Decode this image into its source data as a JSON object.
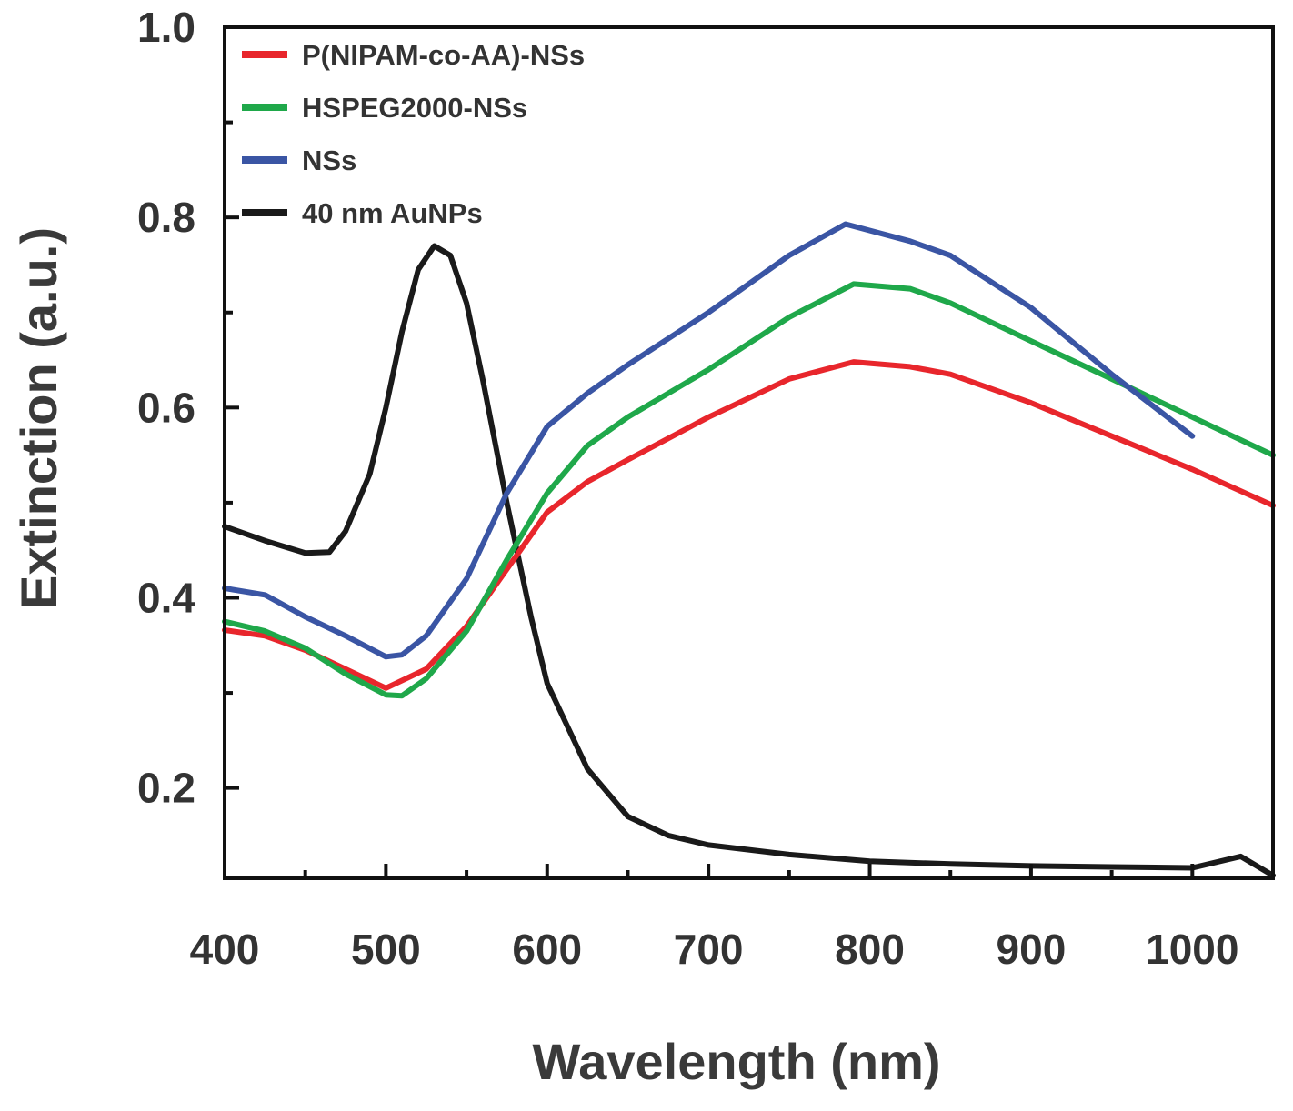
{
  "chart_data": {
    "type": "line",
    "xlabel": "Wavelength (nm)",
    "ylabel": "Extinction (a.u.)",
    "xlim": [
      400,
      1050
    ],
    "ylim": [
      0.105,
      1.0
    ],
    "xticks": [
      400,
      500,
      600,
      700,
      800,
      900,
      1000
    ],
    "yticks": [
      0.2,
      0.4,
      0.6,
      0.8,
      1.0
    ],
    "ytick_labels": [
      "0.2",
      "0.4",
      "0.6",
      "0.8",
      "1.0"
    ],
    "grid": false,
    "legend": "top-left",
    "series": [
      {
        "name": "P(NIPAM-co-AA)-NSs",
        "color": "#e8262c",
        "x": [
          400,
          425,
          450,
          475,
          500,
          525,
          550,
          575,
          600,
          625,
          650,
          700,
          750,
          790,
          825,
          850,
          900,
          950,
          1000,
          1050
        ],
        "y": [
          0.366,
          0.36,
          0.345,
          0.325,
          0.305,
          0.325,
          0.37,
          0.43,
          0.49,
          0.522,
          0.545,
          0.59,
          0.63,
          0.648,
          0.643,
          0.635,
          0.605,
          0.57,
          0.535,
          0.497
        ]
      },
      {
        "name": "HSPEG2000-NSs",
        "color": "#1fa84a",
        "x": [
          400,
          425,
          450,
          475,
          500,
          510,
          525,
          550,
          575,
          600,
          625,
          650,
          700,
          750,
          790,
          825,
          850,
          900,
          950,
          1000,
          1050
        ],
        "y": [
          0.375,
          0.365,
          0.347,
          0.32,
          0.298,
          0.297,
          0.315,
          0.365,
          0.44,
          0.51,
          0.56,
          0.59,
          0.64,
          0.695,
          0.73,
          0.725,
          0.71,
          0.67,
          0.63,
          0.59,
          0.55
        ]
      },
      {
        "name": "NSs",
        "color": "#3a55a4",
        "x": [
          400,
          425,
          450,
          475,
          500,
          510,
          525,
          550,
          575,
          600,
          625,
          650,
          700,
          750,
          785,
          825,
          850,
          900,
          950,
          1000
        ],
        "y": [
          0.41,
          0.403,
          0.38,
          0.36,
          0.338,
          0.34,
          0.36,
          0.42,
          0.51,
          0.58,
          0.615,
          0.645,
          0.7,
          0.76,
          0.793,
          0.775,
          0.76,
          0.705,
          0.635,
          0.57
        ]
      },
      {
        "name": "40 nm AuNPs",
        "color": "#1a1a1a",
        "x": [
          400,
          425,
          450,
          465,
          475,
          490,
          500,
          510,
          520,
          530,
          540,
          550,
          560,
          575,
          590,
          600,
          625,
          650,
          675,
          700,
          750,
          800,
          850,
          900,
          950,
          1000,
          1030,
          1050
        ],
        "y": [
          0.475,
          0.46,
          0.447,
          0.448,
          0.47,
          0.53,
          0.6,
          0.68,
          0.745,
          0.77,
          0.76,
          0.71,
          0.63,
          0.5,
          0.38,
          0.31,
          0.22,
          0.17,
          0.15,
          0.14,
          0.13,
          0.123,
          0.12,
          0.118,
          0.117,
          0.116,
          0.128,
          0.108
        ]
      }
    ]
  }
}
